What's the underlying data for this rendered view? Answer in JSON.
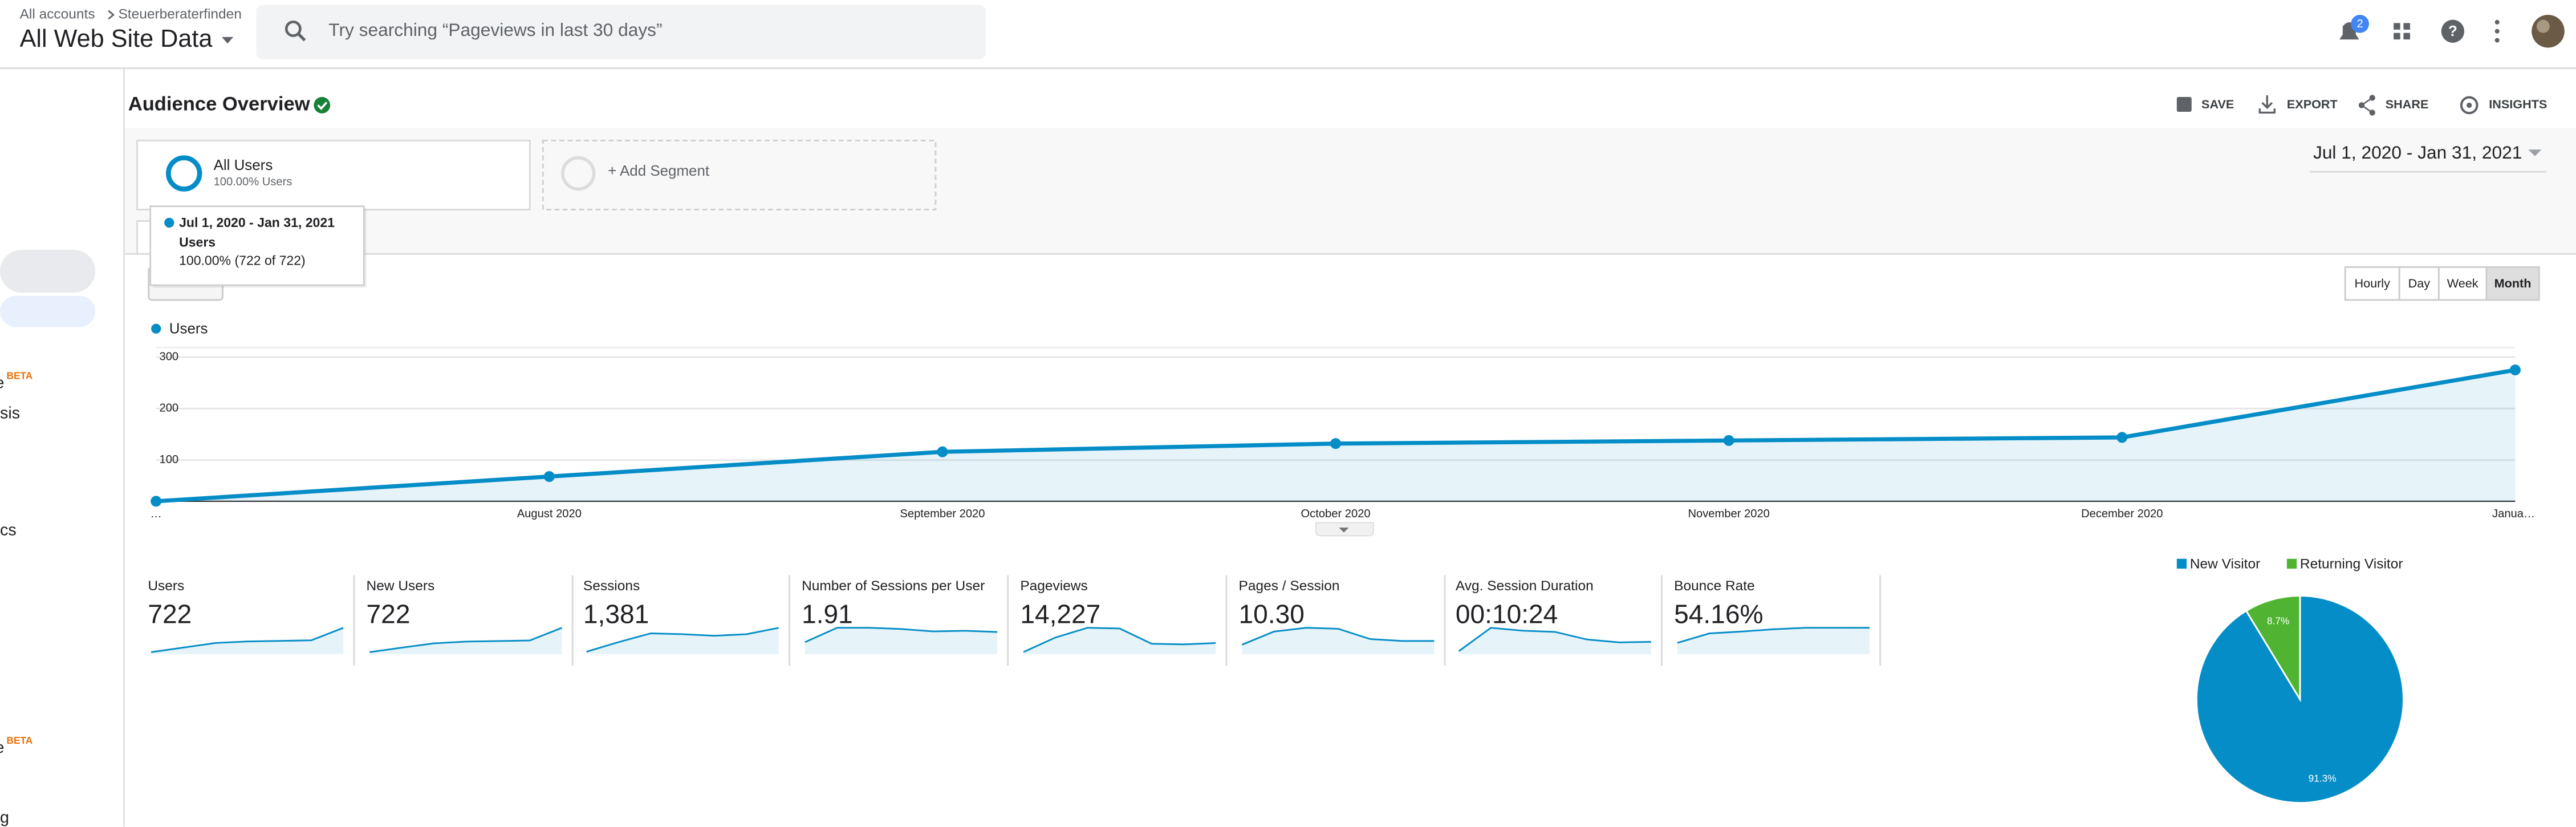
{
  "header": {
    "breadcrumb": [
      "All accounts",
      "Steuerberaterfinden"
    ],
    "view": "All Web Site Data",
    "search_placeholder": "Try searching “Pageviews in last 30 days”",
    "notifications": "2"
  },
  "sidebar": [
    "BETA",
    "e",
    "sis",
    "cs",
    "BETA",
    "e",
    "g"
  ],
  "toolbar": {
    "title": "Audience Overview",
    "actions": [
      "SAVE",
      "EXPORT",
      "SHARE",
      "INSIGHTS"
    ]
  },
  "segments": [
    {
      "name": "All Users",
      "detail": "100.00% Users"
    },
    {
      "name": "+ Add Segment"
    }
  ],
  "date_range": "Jul 1, 2020 - Jan 31, 2021",
  "tooltip": {
    "date": "Jul 1, 2020 - Jan 31, 2021",
    "metric": "Users",
    "value": "100.00% (722 of 722)"
  },
  "granularity": [
    "Hourly",
    "Day",
    "Week",
    "Month"
  ],
  "granularity_selected": "Month",
  "line_chart": {
    "type": "line",
    "categories": [
      "…",
      "August 2020",
      "September 2020",
      "October 2020",
      "November 2020",
      "December 2020",
      "Janua…"
    ],
    "series": [
      {
        "name": "Users",
        "color": "#058dc7",
        "values": [
          20,
          68,
          116,
          132,
          138,
          144,
          275
        ]
      }
    ],
    "ylim": [
      20,
      320
    ],
    "yticks": [
      100,
      200,
      300
    ],
    "grid": true,
    "area": true
  },
  "metrics": [
    {
      "label": "Users",
      "value": "722",
      "sparkline": [
        20,
        68,
        116,
        132,
        138,
        144,
        275
      ]
    },
    {
      "label": "New Users",
      "value": "722",
      "sparkline": [
        20,
        66,
        110,
        128,
        134,
        140,
        270
      ]
    },
    {
      "label": "Sessions",
      "value": "1,381",
      "sparkline": [
        30,
        150,
        260,
        250,
        230,
        250,
        330
      ]
    },
    {
      "label": "Number of Sessions per User",
      "value": "1.91",
      "sparkline": [
        1.0,
        2.2,
        2.2,
        2.1,
        1.9,
        1.95,
        1.85
      ]
    },
    {
      "label": "Pageviews",
      "value": "14,227",
      "sparkline": [
        300,
        2400,
        3800,
        3700,
        1500,
        1400,
        1600
      ]
    },
    {
      "label": "Pages / Session",
      "value": "10.30",
      "sparkline": [
        5,
        12,
        14,
        13.5,
        8,
        7,
        7
      ]
    },
    {
      "label": "Avg. Session Duration",
      "value": "00:10:24",
      "sparkline": [
        100,
        900,
        800,
        760,
        500,
        400,
        420
      ]
    },
    {
      "label": "Bounce Rate",
      "value": "54.16%",
      "sparkline": [
        30,
        55,
        60,
        66,
        70,
        70,
        70
      ]
    }
  ],
  "pie_chart": {
    "type": "pie",
    "categories": [
      "New Visitor",
      "Returning Visitor"
    ],
    "values": [
      91.3,
      8.7
    ],
    "value_labels": [
      "91.3%",
      "8.7%"
    ],
    "colors": [
      "#058dc7",
      "#50b432"
    ]
  }
}
